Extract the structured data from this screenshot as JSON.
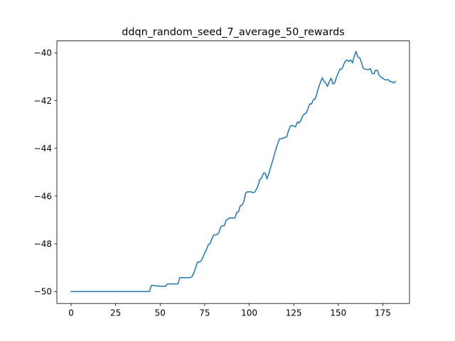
{
  "chart_data": {
    "type": "line",
    "title": "ddqn_random_seed_7_average_50_rewards",
    "xlabel": "",
    "ylabel": "",
    "xlim": [
      -8,
      190
    ],
    "ylim": [
      -50.5,
      -39.5
    ],
    "xticks": [
      0,
      25,
      50,
      75,
      100,
      125,
      150,
      175
    ],
    "yticks": [
      -50,
      -48,
      -46,
      -44,
      -42,
      -40
    ],
    "xtick_labels": [
      "0",
      "25",
      "50",
      "75",
      "100",
      "125",
      "150",
      "175"
    ],
    "ytick_labels": [
      "−50",
      "−48",
      "−46",
      "−44",
      "−42",
      "−40"
    ],
    "grid": false,
    "legend": "none",
    "series": [
      {
        "color": "#1f77b4",
        "x": [
          0,
          5,
          10,
          15,
          20,
          25,
          30,
          35,
          40,
          44,
          45,
          48,
          50,
          53,
          54,
          57,
          60,
          61,
          64,
          67,
          68,
          69,
          70,
          71,
          72,
          73,
          74,
          75,
          76,
          77,
          78,
          79,
          80,
          81,
          82,
          83,
          84,
          85,
          86,
          87,
          88,
          89,
          90,
          91,
          92,
          93,
          94,
          95,
          96,
          97,
          98,
          99,
          100,
          101,
          102,
          103,
          104,
          105,
          106,
          107,
          108,
          109,
          110,
          111,
          112,
          113,
          114,
          115,
          116,
          117,
          118,
          119,
          120,
          121,
          122,
          123,
          124,
          125,
          126,
          127,
          128,
          129,
          130,
          131,
          132,
          133,
          134,
          135,
          136,
          137,
          138,
          139,
          140,
          141,
          142,
          143,
          144,
          145,
          146,
          147,
          148,
          149,
          150,
          151,
          152,
          153,
          154,
          155,
          156,
          157,
          158,
          159,
          160,
          161,
          162,
          163,
          164,
          165,
          166,
          167,
          168,
          169,
          170,
          171,
          172,
          173,
          174,
          175,
          176,
          177,
          178,
          179,
          180,
          181,
          182
        ],
        "values": [
          -50,
          -50,
          -50,
          -50,
          -50,
          -50,
          -50,
          -50,
          -50,
          -50,
          -49.74,
          -49.76,
          -49.78,
          -49.78,
          -49.68,
          -49.68,
          -49.68,
          -49.42,
          -49.42,
          -49.42,
          -49.36,
          -49.2,
          -48.98,
          -48.76,
          -48.76,
          -48.72,
          -48.56,
          -48.38,
          -48.24,
          -48.04,
          -48,
          -47.8,
          -47.64,
          -47.62,
          -47.62,
          -47.52,
          -47.3,
          -47.24,
          -47.24,
          -47.02,
          -46.96,
          -46.92,
          -46.92,
          -46.92,
          -46.92,
          -46.68,
          -46.66,
          -46.4,
          -46.38,
          -46.22,
          -45.88,
          -45.82,
          -45.82,
          -45.82,
          -45.86,
          -45.84,
          -45.72,
          -45.56,
          -45.3,
          -45.24,
          -45.04,
          -45.04,
          -45.28,
          -45.06,
          -44.8,
          -44.56,
          -44.3,
          -44.04,
          -43.8,
          -43.6,
          -43.6,
          -43.58,
          -43.54,
          -43.52,
          -43.28,
          -43.08,
          -43.04,
          -43.06,
          -43.1,
          -42.9,
          -42.94,
          -42.84,
          -42.64,
          -42.56,
          -42.52,
          -42.34,
          -42.14,
          -42.14,
          -41.96,
          -41.94,
          -41.7,
          -41.44,
          -41.24,
          -41.04,
          -41.2,
          -41.26,
          -41.4,
          -41.2,
          -41.06,
          -41.3,
          -41.26,
          -41.02,
          -40.84,
          -40.68,
          -40.68,
          -40.5,
          -40.34,
          -40.3,
          -40.36,
          -40.3,
          -40.42,
          -40.14,
          -39.94,
          -40.18,
          -40.2,
          -40.4,
          -40.64,
          -40.68,
          -40.7,
          -40.7,
          -40.66,
          -40.86,
          -40.88,
          -40.72,
          -40.74,
          -40.94,
          -41.02,
          -41.06,
          -41.12,
          -41.14,
          -41.12,
          -41.2,
          -41.22,
          -41.26,
          -41.2
        ]
      }
    ]
  }
}
